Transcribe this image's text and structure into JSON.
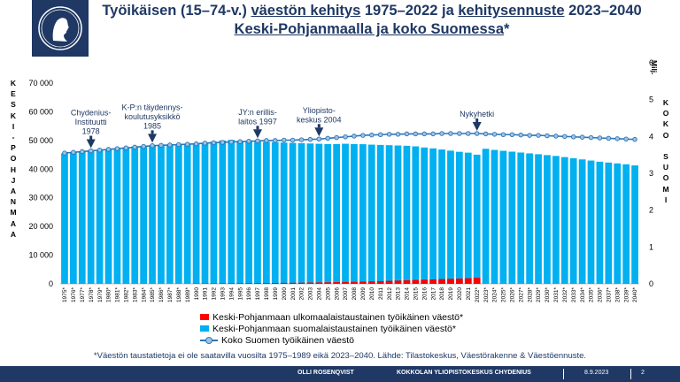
{
  "title_parts": {
    "p1": "Työikäisen (15–74-v.) ",
    "p2": "väestön kehitys",
    "p3": " 1975–2022 ja ",
    "p4": "kehitysennuste",
    "p5": " 2023–2040",
    "p6": "Keski-Pohjanmaalla ja koko Suomessa",
    "p7": "*"
  },
  "left_axis_vertical_label": "KESKI-POHJANMAA",
  "right_axis_vertical_label": "KOKO SUOMI",
  "right_axis_unit": "Milj.",
  "legend": [
    {
      "label": "Keski-Pohjanmaan ulkomaalaistaustainen työikäinen väestö*",
      "color": "#ff0000"
    },
    {
      "label": "Keski-Pohjanmaan suomalaistaustainen työikäinen väestö*",
      "color": "#00b0f0"
    },
    {
      "label": "Koko Suomen työikäinen väestö",
      "color": "#2e75b6"
    }
  ],
  "footnote": "*Väestön taustatietoja ei ole saatavilla vuosilta 1975–1989 eikä 2023–2040.  Lähde: Tilastokeskus, Väestörakenne & Väestöennuste.",
  "footer": {
    "author": "OLLI ROSENQVIST",
    "org": "KOKKOLAN YLIOPISTOKESKUS CHYDENIUS",
    "date": "8.9.2023",
    "page": "2"
  },
  "colors": {
    "navy": "#1f3864",
    "bar_blue": "#00b0f0",
    "bar_red": "#ff0000",
    "line": "#2e75b6"
  },
  "logo_icon": "university-logo-icon",
  "chart_data": {
    "type": "bar",
    "categories": [
      "1975*",
      "1976*",
      "1977*",
      "1978*",
      "1979*",
      "1980*",
      "1981*",
      "1982*",
      "1983*",
      "1984*",
      "1985*",
      "1986*",
      "1987*",
      "1988*",
      "1989*",
      "1990",
      "1991",
      "1992",
      "1993",
      "1994",
      "1995",
      "1996",
      "1997",
      "1998",
      "1999",
      "2000",
      "2001",
      "2002",
      "2003",
      "2004",
      "2005",
      "2006",
      "2007",
      "2008",
      "2009",
      "2010",
      "2011",
      "2012",
      "2013",
      "2014",
      "2015",
      "2016",
      "2017",
      "2018",
      "2019",
      "2020",
      "2021",
      "2022*",
      "2023*",
      "2024*",
      "2025*",
      "2026*",
      "2027*",
      "2028*",
      "2029*",
      "2030*",
      "2031*",
      "2032*",
      "2033*",
      "2034*",
      "2035*",
      "2036*",
      "2037*",
      "2038*",
      "2039*",
      "2040*"
    ],
    "left_axis": {
      "min": 0,
      "max": 70000,
      "ticks": [
        "0",
        "10 000",
        "20 000",
        "30 000",
        "40 000",
        "50 000",
        "60 000",
        "70 000"
      ]
    },
    "right_axis": {
      "min": 0,
      "max": 6,
      "ticks": [
        "0",
        "1",
        "2",
        "3",
        "4",
        "5",
        "6"
      ]
    },
    "series": [
      {
        "name": "Keski-Pohjanmaan ulkomaalaistaustainen työikäinen väestö*",
        "type": "stacked-bar",
        "values": [
          0,
          0,
          0,
          0,
          0,
          0,
          0,
          0,
          0,
          0,
          0,
          0,
          0,
          0,
          0,
          100,
          120,
          140,
          160,
          180,
          200,
          230,
          260,
          290,
          320,
          350,
          380,
          420,
          460,
          500,
          550,
          600,
          650,
          700,
          780,
          850,
          950,
          1050,
          1150,
          1250,
          1350,
          1450,
          1550,
          1650,
          1750,
          1850,
          1950,
          2100,
          0,
          0,
          0,
          0,
          0,
          0,
          0,
          0,
          0,
          0,
          0,
          0,
          0,
          0,
          0,
          0,
          0,
          0
        ]
      },
      {
        "name": "Keski-Pohjanmaan suomalaistaustainen työikäinen väestö*",
        "type": "stacked-bar",
        "values": [
          45500,
          45800,
          46100,
          46400,
          46700,
          47000,
          47300,
          47600,
          47900,
          48100,
          48300,
          48400,
          48500,
          48600,
          48700,
          48700,
          49000,
          49600,
          50000,
          50200,
          49900,
          49700,
          49600,
          49500,
          49400,
          49250,
          49150,
          49050,
          48950,
          48850,
          48750,
          48750,
          48850,
          48750,
          48700,
          48550,
          48450,
          48350,
          48250,
          48150,
          47950,
          47550,
          47250,
          46850,
          46450,
          46050,
          45750,
          45050,
          47100,
          46700,
          46400,
          46100,
          45800,
          45500,
          45200,
          44900,
          44600,
          44200,
          43800,
          43400,
          43000,
          42600,
          42300,
          42000,
          41700,
          41300
        ]
      },
      {
        "name": "Koko Suomen työikäinen väestö",
        "type": "line",
        "axis": "right",
        "values": [
          3.55,
          3.57,
          3.59,
          3.61,
          3.63,
          3.65,
          3.67,
          3.69,
          3.71,
          3.73,
          3.75,
          3.76,
          3.77,
          3.78,
          3.79,
          3.8,
          3.82,
          3.83,
          3.84,
          3.85,
          3.86,
          3.87,
          3.88,
          3.89,
          3.89,
          3.9,
          3.9,
          3.91,
          3.92,
          3.93,
          3.95,
          3.97,
          3.99,
          4.01,
          4.03,
          4.04,
          4.05,
          4.06,
          4.06,
          4.07,
          4.07,
          4.07,
          4.07,
          4.08,
          4.08,
          4.08,
          4.08,
          4.08,
          4.07,
          4.06,
          4.05,
          4.05,
          4.04,
          4.03,
          4.03,
          4.02,
          4.01,
          4.0,
          3.99,
          3.98,
          3.97,
          3.96,
          3.95,
          3.94,
          3.93,
          3.92
        ]
      }
    ],
    "annotations": [
      {
        "text": "Chydenius-Instituutti 1978",
        "lines": [
          "Chydenius-",
          "Instituutti",
          "1978"
        ],
        "year": "1978*"
      },
      {
        "text": "K-P:n täydennyskoulutusyksikkö 1985",
        "lines": [
          "K-P:n täydennys-",
          "koulutusyksikkö",
          "1985"
        ],
        "year": "1985*"
      },
      {
        "text": "JY:n erillislaitos 1997",
        "lines": [
          "JY:n erillis-",
          "laitos 1997"
        ],
        "year": "1997"
      },
      {
        "text": "Yliopistokeskus 2004",
        "lines": [
          "Yliopisto-",
          "keskus 2004"
        ],
        "year": "2004"
      },
      {
        "text": "Nykyhetki",
        "lines": [
          "Nykyhetki"
        ],
        "year": "2022*"
      }
    ]
  }
}
